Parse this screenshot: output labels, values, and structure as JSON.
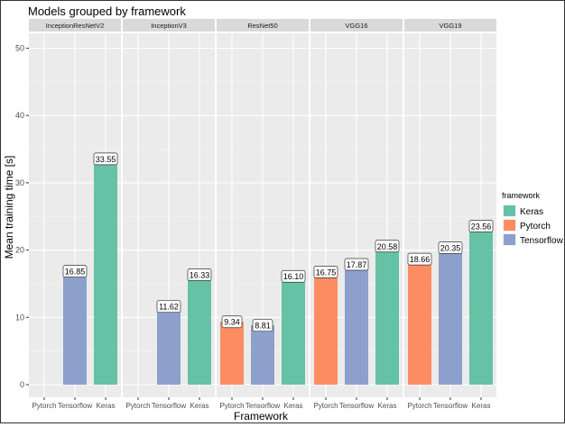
{
  "chart_data": {
    "type": "bar",
    "title": "Models grouped by framework",
    "xlabel": "Framework",
    "ylabel": "Mean training time [s]",
    "ylim": [
      0,
      52
    ],
    "yticks": [
      0,
      10,
      20,
      30,
      40,
      50
    ],
    "grid": true,
    "categories": [
      "Pytorch",
      "Tensorflow",
      "Keras"
    ],
    "facets": [
      {
        "name": "InceptionResNetV2",
        "values": [
          null,
          16.85,
          33.55
        ],
        "labels": [
          "",
          "16.85",
          "33.55"
        ]
      },
      {
        "name": "InceptionV3",
        "values": [
          null,
          11.62,
          16.33
        ],
        "labels": [
          "",
          "11.62",
          "16.33"
        ]
      },
      {
        "name": "ResNet50",
        "values": [
          9.34,
          8.81,
          16.1
        ],
        "labels": [
          "9.34",
          "8.81",
          "16.10"
        ]
      },
      {
        "name": "VGG16",
        "values": [
          16.75,
          17.87,
          20.58
        ],
        "labels": [
          "16.75",
          "17.87",
          "20.58"
        ]
      },
      {
        "name": "VGG19",
        "values": [
          18.66,
          20.35,
          23.56
        ],
        "labels": [
          "18.66",
          "20.35",
          "23.56"
        ]
      }
    ],
    "legend": {
      "title": "framework",
      "position": "right",
      "entries": [
        {
          "label": "Keras",
          "color": "#66c2a5"
        },
        {
          "label": "Pytorch",
          "color": "#fc8d62"
        },
        {
          "label": "Tensorflow",
          "color": "#8da0cb"
        }
      ]
    },
    "colors": {
      "Pytorch": "#fc8d62",
      "Tensorflow": "#8da0cb",
      "Keras": "#66c2a5"
    }
  }
}
